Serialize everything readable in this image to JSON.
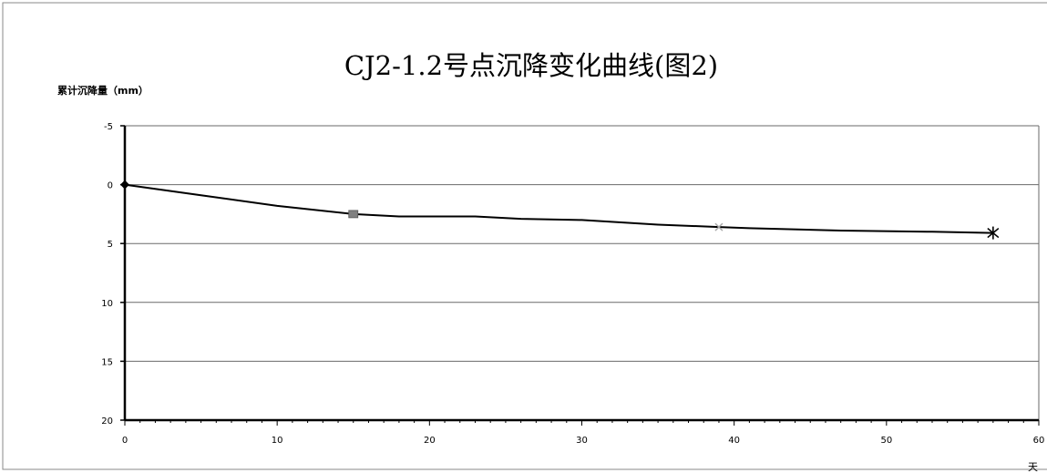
{
  "chart_data": {
    "type": "line",
    "title": "CJ2-1.2号点沉降变化曲线(图2)",
    "ylabel": "累计沉降量（mm）",
    "xlabel": "天",
    "ylim": [
      -5,
      20
    ],
    "y_reversed": true,
    "xlim": [
      0,
      60
    ],
    "y_ticks": [
      "-5",
      "0",
      "5",
      "10",
      "15",
      "20"
    ],
    "x_ticks": [
      "0",
      "10",
      "20",
      "30",
      "40",
      "50",
      "60"
    ],
    "grid": "horizontal",
    "legend": "none",
    "series": [
      {
        "x": [
          0,
          5,
          10,
          15,
          18,
          23,
          26,
          30,
          35,
          39,
          41,
          47,
          53,
          57
        ],
        "values": [
          0,
          0.9,
          1.8,
          2.5,
          2.7,
          2.7,
          2.9,
          3.0,
          3.4,
          3.6,
          3.7,
          3.9,
          4.0,
          4.1
        ],
        "marked_points": [
          {
            "x": 0,
            "y": 0,
            "marker": "diamond"
          },
          {
            "x": 15,
            "y": 2.5,
            "marker": "square"
          },
          {
            "x": 39,
            "y": 3.6,
            "marker": "x"
          },
          {
            "x": 57,
            "y": 4.1,
            "marker": "asterisk"
          }
        ]
      }
    ],
    "colors": {
      "line": "#000000",
      "grid": "#6a6a6a",
      "axis": "#000000",
      "square_marker": "#808080",
      "x_marker": "#aaaaaa"
    }
  }
}
